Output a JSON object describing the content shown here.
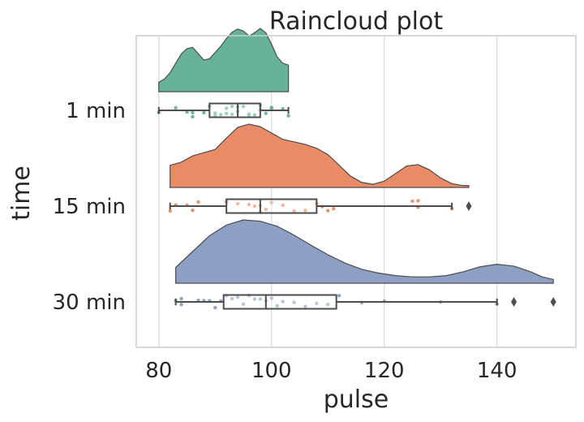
{
  "chart_data": {
    "type": "raincloud",
    "title": "Raincloud plot",
    "xlabel": "pulse",
    "ylabel": "time",
    "xlim": [
      76,
      154
    ],
    "xticks": [
      80,
      100,
      120,
      140
    ],
    "grid": true,
    "orientation": "horizontal",
    "categories": [
      "1 min",
      "15 min",
      "30 min"
    ],
    "series": [
      {
        "category": "1 min",
        "color": "#66b39a",
        "box": {
          "min": 80,
          "q1": 89,
          "median": 94,
          "q3": 98,
          "max": 103
        },
        "outliers": [],
        "points": [
          80,
          83,
          85,
          86,
          86,
          88,
          89,
          90,
          90,
          91,
          92,
          92,
          93,
          93,
          94,
          94,
          95,
          96,
          96,
          97,
          98,
          98,
          99,
          100,
          100,
          102,
          103
        ],
        "density": {
          "x": [
            80,
            81,
            82,
            83,
            84,
            85,
            86,
            87,
            88,
            89,
            90,
            91,
            92,
            93,
            94,
            95,
            96,
            97,
            98,
            99,
            100,
            101,
            102,
            103
          ],
          "y": [
            0.15,
            0.2,
            0.3,
            0.45,
            0.6,
            0.68,
            0.7,
            0.6,
            0.5,
            0.52,
            0.62,
            0.72,
            0.84,
            0.94,
            0.99,
            0.96,
            0.88,
            0.93,
            1.0,
            0.93,
            0.75,
            0.55,
            0.45,
            0.42
          ]
        }
      },
      {
        "category": "15 min",
        "color": "#e98b66",
        "box": {
          "min": 82,
          "q1": 92,
          "median": 98,
          "q3": 108,
          "max": 132
        },
        "outliers": [
          135
        ],
        "points": [
          82,
          83,
          85,
          86,
          87,
          92,
          94,
          96,
          97,
          98,
          98,
          99,
          100,
          102,
          104,
          106,
          108,
          109,
          110,
          111,
          125,
          126,
          126,
          132
        ],
        "density": {
          "x": [
            82,
            84,
            86,
            88,
            90,
            92,
            94,
            96,
            98,
            100,
            102,
            104,
            106,
            108,
            110,
            112,
            114,
            116,
            118,
            120,
            122,
            124,
            126,
            128,
            130,
            132,
            134,
            135
          ],
          "y": [
            0.35,
            0.4,
            0.5,
            0.55,
            0.6,
            0.78,
            0.95,
            1.0,
            0.96,
            0.86,
            0.76,
            0.72,
            0.68,
            0.62,
            0.52,
            0.35,
            0.18,
            0.08,
            0.05,
            0.1,
            0.22,
            0.34,
            0.36,
            0.28,
            0.15,
            0.06,
            0.03,
            0.03
          ]
        }
      },
      {
        "category": "30 min",
        "color": "#8e9fc4",
        "box": {
          "min": 83,
          "q1": 91.5,
          "median": 99,
          "q3": 111.5,
          "max": 140
        },
        "outliers": [
          143,
          150
        ],
        "points": [
          83,
          84,
          84,
          87,
          88,
          89,
          90,
          91,
          92,
          93,
          94,
          95,
          96,
          97,
          98,
          99,
          100,
          101,
          102,
          104,
          106,
          108,
          110,
          112,
          116,
          120,
          130,
          140
        ],
        "density": {
          "x": [
            83,
            86,
            89,
            92,
            95,
            98,
            101,
            104,
            107,
            110,
            113,
            116,
            119,
            122,
            125,
            128,
            131,
            134,
            137,
            140,
            143,
            146,
            148,
            150
          ],
          "y": [
            0.25,
            0.5,
            0.75,
            0.92,
            1.0,
            0.98,
            0.9,
            0.76,
            0.6,
            0.45,
            0.32,
            0.22,
            0.16,
            0.12,
            0.1,
            0.1,
            0.12,
            0.18,
            0.26,
            0.3,
            0.27,
            0.18,
            0.1,
            0.06
          ]
        }
      }
    ]
  }
}
